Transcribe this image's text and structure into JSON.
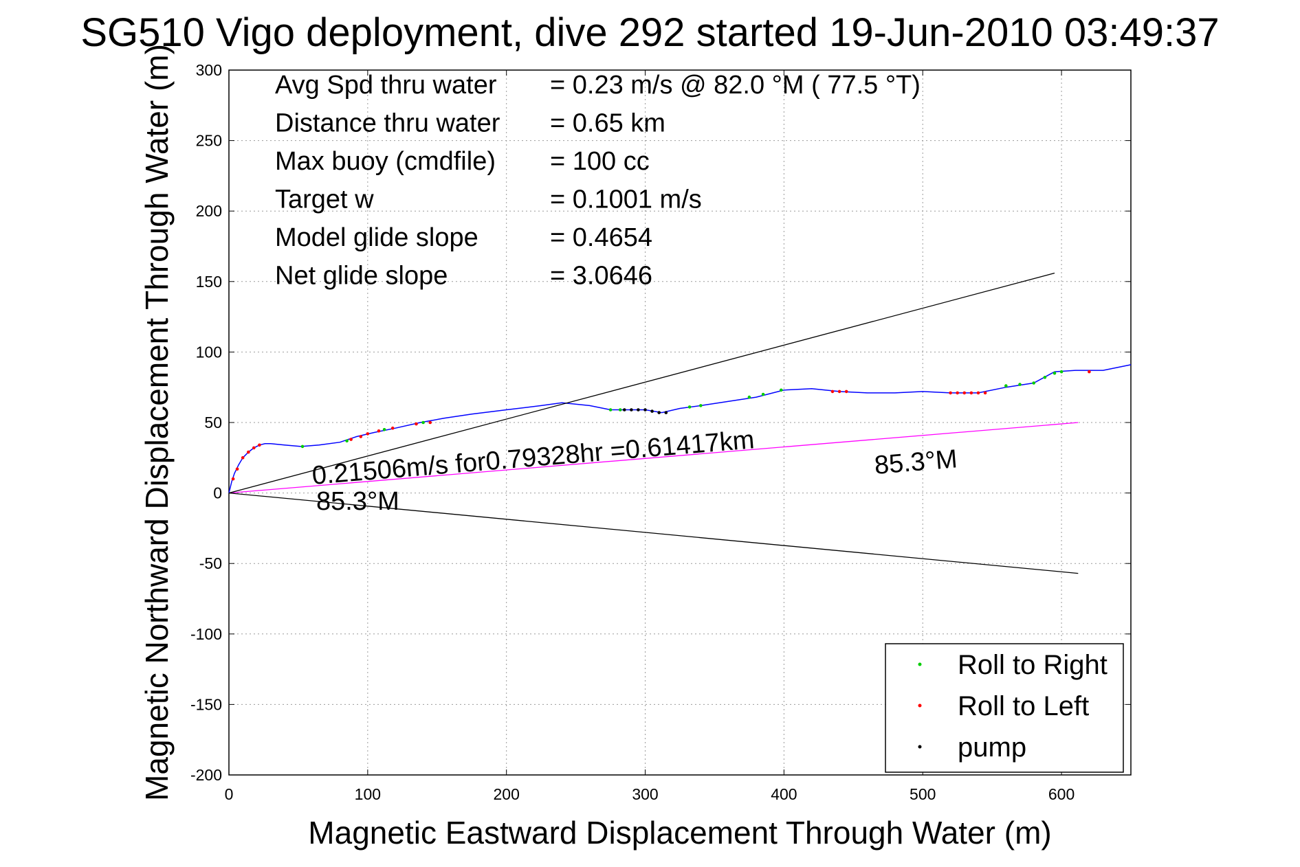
{
  "title": "SG510 Vigo deployment, dive 292 started 19-Jun-2010 03:49:37",
  "colors": {
    "track": "#0000ff",
    "roll_right": "#00cc00",
    "roll_left": "#ff0000",
    "pump": "#000000",
    "current": "#ff00ff",
    "bounds": "#000000"
  },
  "stats": [
    {
      "label": "Avg Spd thru water",
      "value": "=  0.23 m/s @  82.0 °M ( 77.5 °T)"
    },
    {
      "label": "Distance thru water",
      "value": "=  0.65 km"
    },
    {
      "label": "Max buoy (cmdfile)",
      "value": "= 100 cc"
    },
    {
      "label": "Target w",
      "value": "= 0.1001 m/s"
    },
    {
      "label": "Model glide slope",
      "value": "= 0.4654"
    },
    {
      "label": "Net glide slope",
      "value": "= 3.0646"
    }
  ],
  "annotations": {
    "current_text": "0.21506m/s for0.79328hr =0.61417km",
    "heading_near": "85.3°M",
    "heading_far": "85.3°M"
  },
  "chart_data": {
    "type": "line",
    "title": "SG510 Vigo deployment, dive 292 started 19-Jun-2010 03:49:37",
    "xlabel": "Magnetic Eastward Displacement Through Water (m)",
    "ylabel": "Magnetic Northward Displacement Through Water (m)",
    "xlim": [
      0,
      650
    ],
    "ylim": [
      -200,
      300
    ],
    "x_ticks": [
      0,
      100,
      200,
      300,
      400,
      500,
      600
    ],
    "y_ticks": [
      300,
      250,
      200,
      150,
      100,
      50,
      0,
      -50,
      -100,
      -150,
      -200
    ],
    "grid": true,
    "legend_position": "bottom-right",
    "legend": [
      {
        "label": "Roll to Right",
        "color": "#00cc00"
      },
      {
        "label": "Roll to Left",
        "color": "#ff0000"
      },
      {
        "label": "pump",
        "color": "#000000"
      }
    ],
    "series": [
      {
        "name": "track",
        "color": "#0000ff",
        "x": [
          0,
          2,
          4,
          7,
          10,
          14,
          18,
          22,
          26,
          30,
          40,
          52,
          65,
          80,
          92,
          105,
          120,
          138,
          155,
          175,
          200,
          225,
          240,
          260,
          275,
          290,
          300,
          312,
          325,
          340,
          360,
          380,
          400,
          420,
          440,
          460,
          480,
          500,
          520,
          540,
          560,
          580,
          595,
          610,
          630,
          650
        ],
        "y": [
          0,
          8,
          14,
          20,
          25,
          29,
          32,
          34,
          35,
          35,
          34,
          33,
          34,
          36,
          40,
          43,
          46,
          50,
          53,
          56,
          59,
          62,
          64,
          62,
          59,
          59,
          59,
          57,
          60,
          62,
          65,
          68,
          73,
          74,
          72,
          71,
          71,
          72,
          71,
          71,
          75,
          78,
          86,
          87,
          87,
          91
        ]
      },
      {
        "name": "Roll to Right",
        "color": "#00cc00",
        "x": [
          53,
          85,
          112,
          140,
          275,
          282,
          332,
          340,
          375,
          385,
          398,
          560,
          570,
          580,
          588,
          595,
          600
        ],
        "y": [
          33,
          37,
          45,
          50,
          59,
          59,
          61,
          62,
          68,
          70,
          73,
          76,
          77,
          78,
          82,
          85,
          86
        ]
      },
      {
        "name": "Roll to Left",
        "color": "#ff0000",
        "x": [
          3,
          6,
          10,
          14,
          18,
          22,
          88,
          95,
          100,
          108,
          118,
          135,
          145,
          435,
          440,
          445,
          520,
          525,
          530,
          535,
          540,
          545,
          620
        ],
        "y": [
          10,
          17,
          25,
          29,
          32,
          34,
          38,
          40,
          42,
          44,
          46,
          49,
          50,
          72,
          72,
          72,
          71,
          71,
          71,
          71,
          71,
          71,
          86
        ]
      },
      {
        "name": "pump",
        "color": "#000000",
        "x": [
          285,
          290,
          295,
          300,
          305,
          310,
          315
        ],
        "y": [
          59,
          59,
          59,
          59,
          58,
          57,
          57
        ]
      },
      {
        "name": "current",
        "color": "#ff00ff",
        "x": [
          0,
          612
        ],
        "y": [
          0,
          50
        ]
      },
      {
        "name": "upper-bound",
        "color": "#000000",
        "x": [
          0,
          595
        ],
        "y": [
          0,
          156
        ]
      },
      {
        "name": "lower-bound",
        "color": "#000000",
        "x": [
          0,
          612
        ],
        "y": [
          0,
          -57
        ]
      }
    ]
  }
}
